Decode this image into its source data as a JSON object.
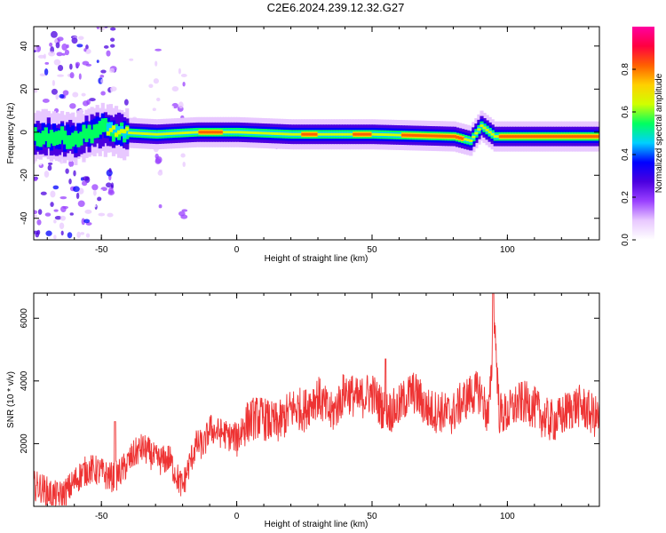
{
  "chart_data": [
    {
      "type": "heatmap",
      "title": "C2E6.2024.239.12.32.G27",
      "xlabel": "Height of straight line (km)",
      "ylabel": "Frequency (Hz)",
      "xlim": [
        -75,
        134
      ],
      "ylim": [
        -50,
        49
      ],
      "xticks": [
        -50,
        0,
        50,
        100
      ],
      "yticks": [
        40,
        20,
        0,
        -20,
        -40
      ],
      "xtick_labels": [
        "-50",
        "0",
        "50",
        "100"
      ],
      "ytick_labels": [
        "40",
        "20",
        "0",
        "-20",
        "-40"
      ],
      "colorbar": {
        "label": "Normalized spectral amplitude",
        "range": [
          0,
          1
        ],
        "ticks": [
          0.0,
          0.2,
          0.4,
          0.6,
          0.8
        ],
        "tick_labels": [
          "0.0",
          "0.2",
          "0.4",
          "0.6",
          "0.8"
        ],
        "colors": [
          "#ffffff",
          "#e8c8ff",
          "#9a40ff",
          "#4b00e0",
          "#0000ff",
          "#00d0ff",
          "#00ff60",
          "#d0ff00",
          "#ffd000",
          "#ff6000",
          "#ff0040",
          "#ff00a0"
        ]
      },
      "ridge": {
        "description_values_km_hz": [
          [
            -70,
            -2
          ],
          [
            -60,
            -3
          ],
          [
            -50,
            2
          ],
          [
            -45,
            0
          ],
          [
            -30,
            -1
          ],
          [
            -15,
            0
          ],
          [
            0,
            0
          ],
          [
            20,
            -1
          ],
          [
            50,
            -1
          ],
          [
            80,
            -2
          ],
          [
            86,
            -4
          ],
          [
            90,
            3
          ],
          [
            95,
            -2
          ],
          [
            134,
            -2
          ]
        ]
      }
    },
    {
      "type": "line",
      "xlabel": "Height of straight line (km)",
      "ylabel": "SNR (10 * v/v)",
      "xlim": [
        -75,
        134
      ],
      "ylim": [
        0,
        6800
      ],
      "xticks": [
        -50,
        0,
        50,
        100
      ],
      "yticks": [
        2000,
        4000,
        6000
      ],
      "xtick_labels": [
        "-50",
        "0",
        "50",
        "100"
      ],
      "ytick_labels": [
        "2000",
        "4000",
        "6000"
      ],
      "color": "#ee3333",
      "envelope": {
        "x": [
          -75,
          -65,
          -55,
          -50,
          -45,
          -40,
          -35,
          -30,
          -25,
          -20,
          -15,
          -12,
          -10,
          -5,
          0,
          5,
          10,
          15,
          20,
          25,
          30,
          35,
          40,
          45,
          50,
          55,
          60,
          65,
          70,
          75,
          80,
          85,
          90,
          93,
          94,
          95,
          97,
          100,
          110,
          120,
          134
        ],
        "y": [
          400,
          600,
          900,
          1100,
          1200,
          1400,
          1600,
          1500,
          1800,
          600,
          1700,
          1800,
          2500,
          2600,
          2200,
          2500,
          2800,
          2900,
          3100,
          2800,
          3500,
          3200,
          3700,
          3100,
          3600,
          3300,
          3200,
          3400,
          3100,
          3300,
          3000,
          3200,
          3600,
          3000,
          4200,
          6600,
          3200,
          3000,
          3100,
          2900,
          3000
        ]
      },
      "peaks": [
        {
          "x": 94.8,
          "y": 6800
        },
        {
          "x": -45,
          "y": 2700
        },
        {
          "x": 55,
          "y": 4700
        }
      ]
    }
  ]
}
